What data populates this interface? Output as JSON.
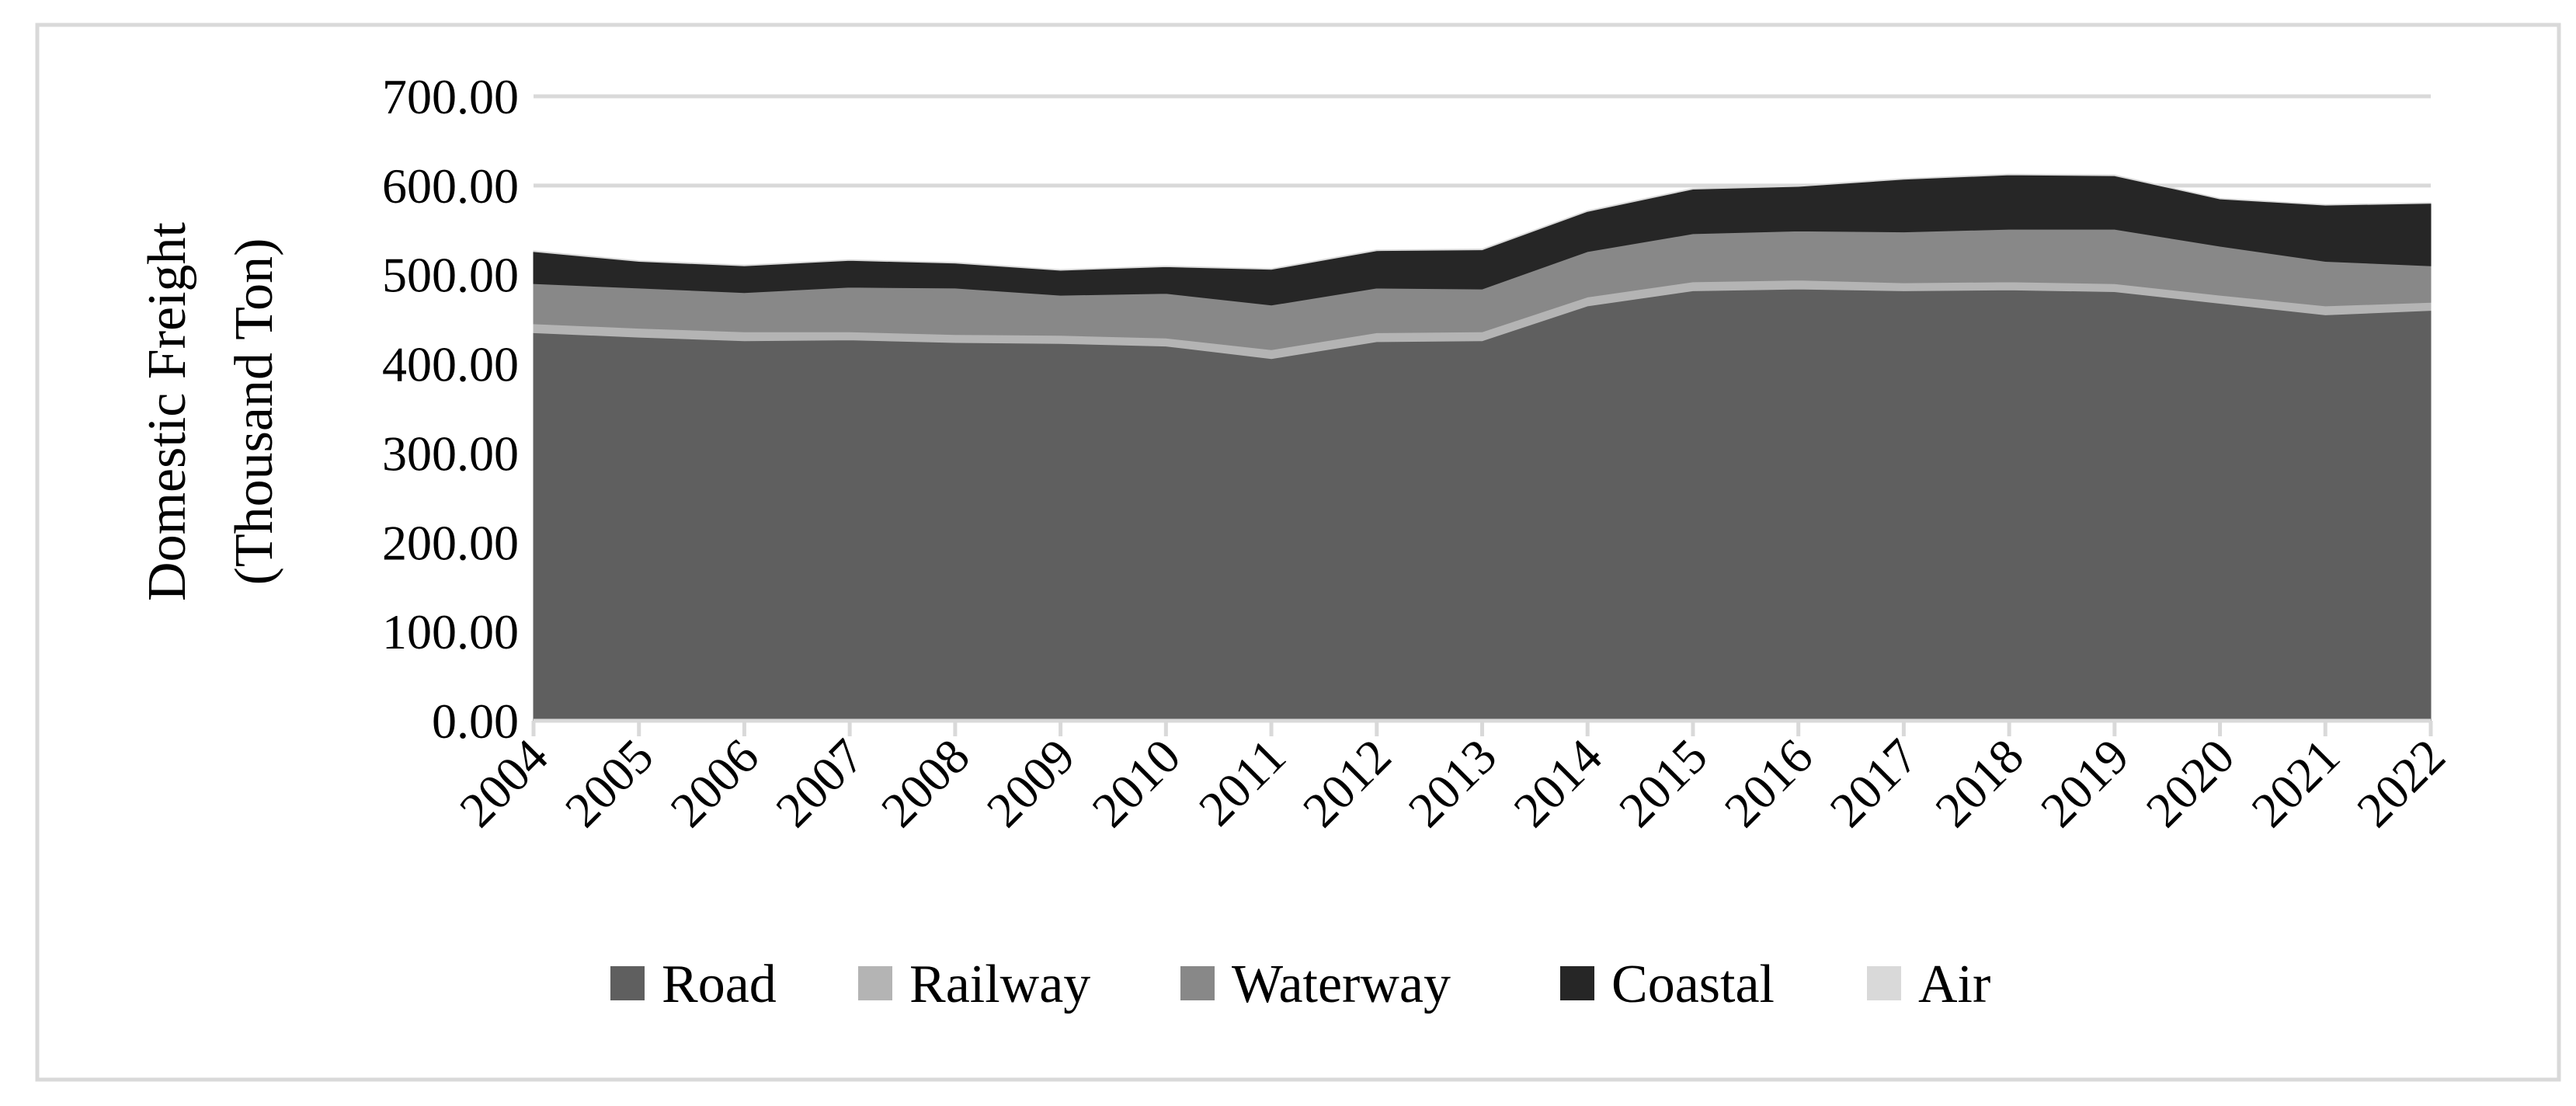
{
  "chart_data": {
    "type": "area",
    "stacked": true,
    "title": "",
    "ylabel": "Domestic Freight",
    "ylabel_line2": "(Thousand Ton)",
    "xlabel": "",
    "ylim": [
      0,
      700
    ],
    "yticks": [
      "0.00",
      "100.00",
      "200.00",
      "300.00",
      "400.00",
      "500.00",
      "600.00",
      "700.00"
    ],
    "categories": [
      "2004",
      "2005",
      "2006",
      "2007",
      "2008",
      "2009",
      "2010",
      "2011",
      "2012",
      "2013",
      "2014",
      "2015",
      "2016",
      "2017",
      "2018",
      "2019",
      "2020",
      "2021",
      "2022"
    ],
    "series": [
      {
        "name": "Road",
        "color": "#5f5f5f",
        "values": [
          435,
          430,
          426,
          427,
          424,
          423,
          420,
          406,
          425,
          426,
          465,
          482,
          484,
          482,
          483,
          481,
          468,
          455,
          460
        ]
      },
      {
        "name": "Railway",
        "color": "#b4b4b4",
        "values": [
          10,
          10,
          10,
          9,
          9,
          9,
          9,
          10,
          10,
          10,
          10,
          10,
          10,
          9,
          9,
          9,
          9,
          10,
          9
        ]
      },
      {
        "name": "Waterway",
        "color": "#888888",
        "values": [
          45,
          45,
          44,
          50,
          52,
          45,
          50,
          50,
          50,
          48,
          51,
          54,
          55,
          57,
          59,
          61,
          55,
          50,
          41
        ]
      },
      {
        "name": "Coastal",
        "color": "#262626",
        "values": [
          36,
          30,
          30,
          30,
          28,
          28,
          30,
          40,
          42,
          44,
          45,
          50,
          50,
          59,
          61,
          60,
          53,
          63,
          70
        ]
      },
      {
        "name": "Air",
        "color": "#d9d9d9",
        "values": [
          0.8,
          0.8,
          0.8,
          0.8,
          0.8,
          0.8,
          0.8,
          0.8,
          0.8,
          0.8,
          0.8,
          0.8,
          0.8,
          0.8,
          0.8,
          0.8,
          0.6,
          0.6,
          0.7
        ]
      }
    ],
    "legend": "bottom",
    "grid": true
  }
}
